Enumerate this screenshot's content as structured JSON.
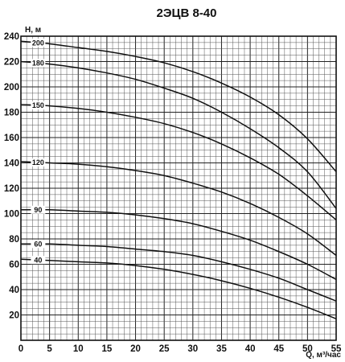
{
  "chart_data": {
    "type": "line",
    "title": "2ЭЦВ 8-40",
    "ylabel": "H, м",
    "xlabel": "Q, м³/час",
    "xlim": [
      0,
      55
    ],
    "ylim": [
      0,
      240
    ],
    "x_ticks": [
      0,
      5,
      10,
      15,
      20,
      25,
      30,
      35,
      40,
      45,
      50,
      55
    ],
    "y_ticks": [
      20,
      40,
      60,
      80,
      100,
      120,
      140,
      160,
      180,
      200,
      220,
      240
    ],
    "grid": true,
    "series": [
      {
        "name": "200",
        "x": [
          0,
          5,
          10,
          15,
          20,
          25,
          30,
          35,
          40,
          45,
          50,
          55
        ],
        "y": [
          236,
          234,
          231,
          228,
          224,
          219,
          212,
          203,
          192,
          178,
          159,
          133
        ]
      },
      {
        "name": "180",
        "x": [
          0,
          5,
          10,
          15,
          20,
          25,
          30,
          35,
          40,
          45,
          50,
          55
        ],
        "y": [
          220,
          218,
          215,
          211,
          206,
          199,
          191,
          180,
          167,
          152,
          133,
          104
        ]
      },
      {
        "name": "150",
        "x": [
          0,
          5,
          10,
          15,
          20,
          25,
          30,
          35,
          40,
          45,
          50,
          55
        ],
        "y": [
          186,
          185,
          183,
          180,
          176,
          171,
          164,
          155,
          144,
          131,
          114,
          95
        ]
      },
      {
        "name": "120",
        "x": [
          0,
          5,
          10,
          15,
          20,
          25,
          30,
          35,
          40,
          45,
          50,
          55
        ],
        "y": [
          141,
          140,
          139,
          137,
          134,
          130,
          124,
          117,
          108,
          97,
          84,
          67
        ]
      },
      {
        "name": "90",
        "x": [
          0,
          5,
          10,
          15,
          20,
          25,
          30,
          35,
          40,
          45,
          50,
          55
        ],
        "y": [
          103,
          103,
          102,
          101,
          99,
          96,
          92,
          86,
          79,
          70,
          60,
          48
        ]
      },
      {
        "name": "60",
        "x": [
          0,
          5,
          10,
          15,
          20,
          25,
          30,
          35,
          40,
          45,
          50,
          55
        ],
        "y": [
          76,
          76,
          75,
          74,
          72,
          70,
          67,
          62,
          56,
          49,
          40,
          31
        ]
      },
      {
        "name": "40",
        "x": [
          0,
          5,
          10,
          15,
          20,
          25,
          30,
          35,
          40,
          45,
          50,
          55
        ],
        "y": [
          64,
          63,
          62,
          61,
          59,
          56,
          52,
          47,
          41,
          34,
          26,
          17
        ]
      }
    ]
  }
}
